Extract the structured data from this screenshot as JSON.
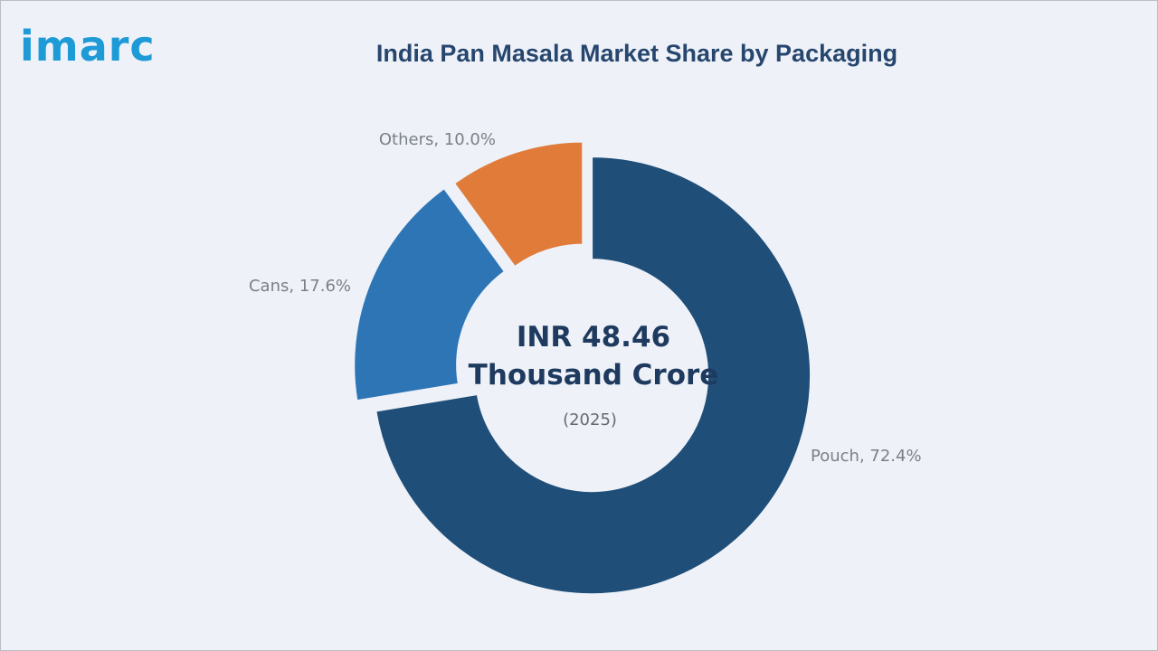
{
  "brand": {
    "logo": "imarc"
  },
  "chart_data": {
    "type": "pie",
    "title": "India Pan Masala Market Share by Packaging",
    "categories": [
      "Pouch",
      "Cans",
      "Others"
    ],
    "values": [
      72.4,
      17.6,
      10.0
    ],
    "labels": [
      "Pouch, 72.4%",
      "Cans, 17.6%",
      "Others, 10.0%"
    ],
    "colors": [
      "#1f4e79",
      "#2e75b6",
      "#e07b39"
    ],
    "center": {
      "line1": "INR 48.46",
      "line2": "Thousand Crore",
      "year": "(2025)"
    },
    "donut": true
  }
}
